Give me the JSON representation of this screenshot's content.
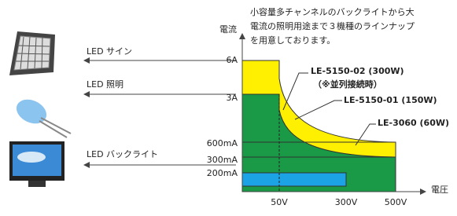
{
  "intro": [
    "小容量多チャンネルのバックライトから大",
    "電流の照明用途まで３機種のラインナップ",
    "を用意しております。"
  ],
  "axes": {
    "y_label": "電流",
    "x_label": "電圧",
    "y_ticks": [
      "6A",
      "3A",
      "600mA",
      "300mA",
      "200mA"
    ],
    "x_ticks": [
      "50V",
      "300V",
      "500V"
    ]
  },
  "applications": [
    "LED サイン",
    "LED 照明",
    "LED バックライト"
  ],
  "models": [
    {
      "name": "LE-5150-02 (300W)",
      "note": "（※並列接続時）"
    },
    {
      "name": "LE-5150-01 (150W)"
    },
    {
      "name": "LE-3060 (60W)"
    }
  ]
}
